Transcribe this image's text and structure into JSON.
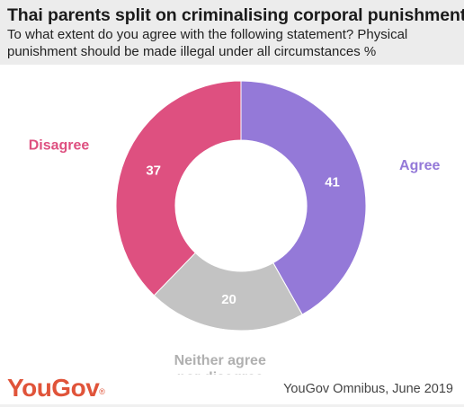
{
  "header": {
    "title": "Thai parents split on criminalising corporal punishment",
    "subtitle": "To what extent do you agree with the following statement? Physical punishment should be made illegal under all circumstances %"
  },
  "chart_data": {
    "type": "pie",
    "categories": [
      "Agree",
      "Neither agree nor disagree",
      "Disagree"
    ],
    "values": [
      41,
      20,
      37
    ],
    "colors": [
      "#9479d8",
      "#c3c3c3",
      "#de5080"
    ],
    "label_lines": [
      [
        "Agree"
      ],
      [
        "Neither agree",
        "nor disagree"
      ],
      [
        "Disagree"
      ]
    ],
    "label_colors": [
      "#9479d8",
      "#b0b0b0",
      "#de5080"
    ],
    "value_color": "#ffffff",
    "style": "donut"
  },
  "footer": {
    "brand": "YouGov",
    "trademark": "®",
    "source": "YouGov Omnibus, June 2019"
  }
}
